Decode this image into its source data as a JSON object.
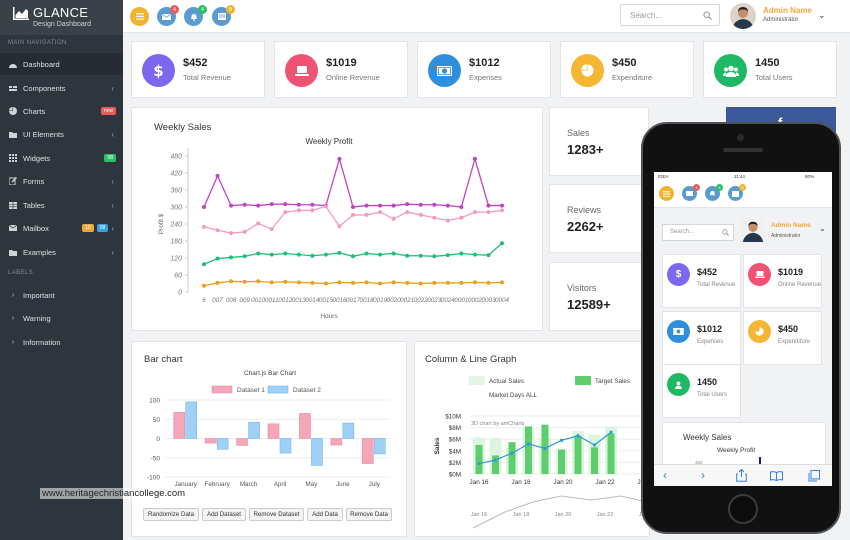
{
  "app": {
    "title": "GLANCE",
    "subtitle": "Design Dashboard"
  },
  "sidebar": {
    "section_main": "MAIN NAVIGATION",
    "items": [
      {
        "label": "Dashboard",
        "icon": "dashboard-icon"
      },
      {
        "label": "Components",
        "icon": "components-icon"
      },
      {
        "label": "Charts",
        "icon": "pie-chart-icon",
        "badge": "new",
        "badge_color": "#e85c5c"
      },
      {
        "label": "UI Elements",
        "icon": "folder-icon"
      },
      {
        "label": "Widgets",
        "icon": "grid-icon",
        "badge": "08",
        "badge_color": "#2bbf68"
      },
      {
        "label": "Forms",
        "icon": "edit-icon"
      },
      {
        "label": "Tables",
        "icon": "table-icon"
      },
      {
        "label": "Mailbox",
        "icon": "envelope-icon",
        "badge": "10",
        "badge2": "08",
        "badge_color": "#f0a73a",
        "badge2_color": "#3aa0e0"
      },
      {
        "label": "Examples",
        "icon": "folder-icon"
      }
    ],
    "section_labels": "LABELS",
    "labels": [
      {
        "label": "Important"
      },
      {
        "label": "Warning"
      },
      {
        "label": "Information"
      }
    ]
  },
  "topbar": {
    "buttons": [
      {
        "icon": "menu-icon",
        "color": "#f0b52c"
      },
      {
        "icon": "envelope-icon",
        "color": "#5b9bd0",
        "badge": "4",
        "badge_color": "#e85c5c"
      },
      {
        "icon": "bell-icon",
        "color": "#5b9bd0",
        "badge": "4",
        "badge_color": "#2bbf68"
      },
      {
        "icon": "tasks-icon",
        "color": "#5b9bd0",
        "badge": "8",
        "badge_color": "#f0b52c"
      }
    ],
    "search_placeholder": "Search...",
    "admin_name": "Admin Name",
    "admin_role": "Administrator"
  },
  "stats": [
    {
      "value": "$452",
      "label": "Total Revenue",
      "color": "#7b68ee",
      "icon": "dollar-icon"
    },
    {
      "value": "$1019",
      "label": "Online Revenue",
      "color": "#ef5374",
      "icon": "laptop-icon"
    },
    {
      "value": "$1012",
      "label": "Expenses",
      "color": "#2f8fdd",
      "icon": "money-icon"
    },
    {
      "value": "$450",
      "label": "Expenditure",
      "color": "#f5b634",
      "icon": "pie-icon"
    },
    {
      "value": "1450",
      "label": "Total Users",
      "color": "#1fb965",
      "icon": "users-icon"
    }
  ],
  "weekly": {
    "title": "Weekly Sales",
    "chart_data": {
      "type": "line",
      "title": "Weekly Profit",
      "xlabel": "Hours",
      "ylabel": "Profit $",
      "ylim": [
        0,
        480
      ],
      "yticks": [
        0,
        60,
        120,
        180,
        240,
        300,
        360,
        420,
        480
      ],
      "xticks": [
        "6",
        "007",
        "008",
        "009",
        "0010",
        "0011",
        "0012",
        "0013",
        "0014",
        "0015",
        "0016",
        "0017",
        "0018",
        "0019",
        "0020",
        "0021",
        "0022",
        "0023",
        "0024",
        "0001",
        "0002",
        "0003",
        "0004"
      ],
      "series": [
        {
          "color": "#c044c0",
          "values": [
            300,
            410,
            305,
            308,
            305,
            310,
            310,
            308,
            308,
            305,
            470,
            300,
            305,
            305,
            305,
            310,
            308,
            308,
            305,
            300,
            470,
            305,
            305
          ]
        },
        {
          "color": "#f29bc6",
          "values": [
            230,
            218,
            208,
            212,
            242,
            222,
            282,
            288,
            288,
            302,
            232,
            272,
            272,
            282,
            258,
            282,
            272,
            262,
            252,
            262,
            282,
            282,
            288
          ]
        },
        {
          "color": "#1fbf7a",
          "values": [
            98,
            118,
            122,
            126,
            136,
            132,
            136,
            132,
            128,
            132,
            138,
            126,
            136,
            132,
            136,
            128,
            128,
            126,
            130,
            136,
            132,
            130,
            172
          ]
        },
        {
          "color": "#e9a11b",
          "values": [
            22,
            32,
            38,
            36,
            38,
            34,
            36,
            34,
            32,
            30,
            34,
            32,
            34,
            30,
            34,
            32,
            30,
            32,
            32,
            32,
            34,
            32,
            34
          ]
        }
      ]
    }
  },
  "minis": [
    {
      "label": "Sales",
      "value": "1283+"
    },
    {
      "label": "Reviews",
      "value": "2262+"
    },
    {
      "label": "Visitors",
      "value": "12589+"
    }
  ],
  "bar": {
    "title": "Bar chart",
    "buttons": [
      "Randomize Data",
      "Add Dataset",
      "Remove Dataset",
      "Add Data",
      "Remove Data"
    ],
    "chart_data": {
      "type": "bar",
      "title": "Chart.js Bar Chart",
      "categories": [
        "January",
        "February",
        "March",
        "April",
        "May",
        "June",
        "July"
      ],
      "ylim": [
        -100,
        100
      ],
      "yticks": [
        -100,
        -50,
        0,
        50,
        100
      ],
      "series": [
        {
          "name": "Dataset 1",
          "color": "#f4a7b9",
          "values": [
            68,
            -12,
            -18,
            38,
            65,
            -17,
            -65
          ]
        },
        {
          "name": "Dataset 2",
          "color": "#9fd0f5",
          "values": [
            95,
            -28,
            42,
            -38,
            -70,
            40,
            -40
          ]
        }
      ]
    }
  },
  "combo": {
    "title": "Column & Line Graph",
    "chart_data": {
      "type": "bar",
      "annotation": "3D chart by amCharts",
      "legend": [
        "Actual Sales",
        "Target Sales",
        "Market Days ALL"
      ],
      "ylabel": "Sales",
      "yticks": [
        "$0M",
        "$2M",
        "$4M",
        "$6M",
        "$8M",
        "$10M"
      ],
      "xticks": [
        "Jan 16",
        "Jan 18",
        "Jan 20",
        "Jan 22",
        "Jan 24"
      ],
      "series": [
        {
          "name": "Actual Sales",
          "color": "#dff3e1",
          "values": [
            6.3,
            6.2,
            4.5,
            8.0,
            6.2,
            4.3,
            7.4,
            6.8,
            8.2
          ]
        },
        {
          "name": "Target Sales",
          "color": "#5ccf6c",
          "values": [
            5.0,
            3.2,
            5.5,
            8.2,
            8.5,
            4.2,
            6.6,
            4.6,
            7.0
          ]
        }
      ],
      "line_values": [
        1.8,
        2.4,
        3.6,
        5.2,
        4.4,
        5.8,
        6.6,
        5.0,
        7.2
      ]
    }
  },
  "phone": {
    "carrier": "IDEA",
    "time": "11:44",
    "battery": "80%",
    "search_placeholder": "Search...",
    "admin_name": "Admin Name",
    "admin_role": "Administrator",
    "cards": [
      {
        "value": "$452",
        "label": "Total Revenue",
        "color": "#7b68ee",
        "icon": "dollar-icon"
      },
      {
        "value": "$1019",
        "label": "Online Revenue",
        "color": "#ef5374",
        "icon": "laptop-icon"
      },
      {
        "value": "$1012",
        "label": "Expenses",
        "color": "#2f8fdd",
        "icon": "money-icon"
      },
      {
        "value": "$450",
        "label": "Expenditure",
        "color": "#f5b634",
        "icon": "pie-icon"
      },
      {
        "value": "1450",
        "label": "Total Users",
        "color": "#1fb965",
        "icon": "users-icon"
      }
    ],
    "weekly_title": "Weekly Sales",
    "weekly_chart_title": "Weekly Profit",
    "weekly_tick": "480"
  },
  "facebook_letter": "f",
  "watermark": "www.heritagechristiancollege.com"
}
